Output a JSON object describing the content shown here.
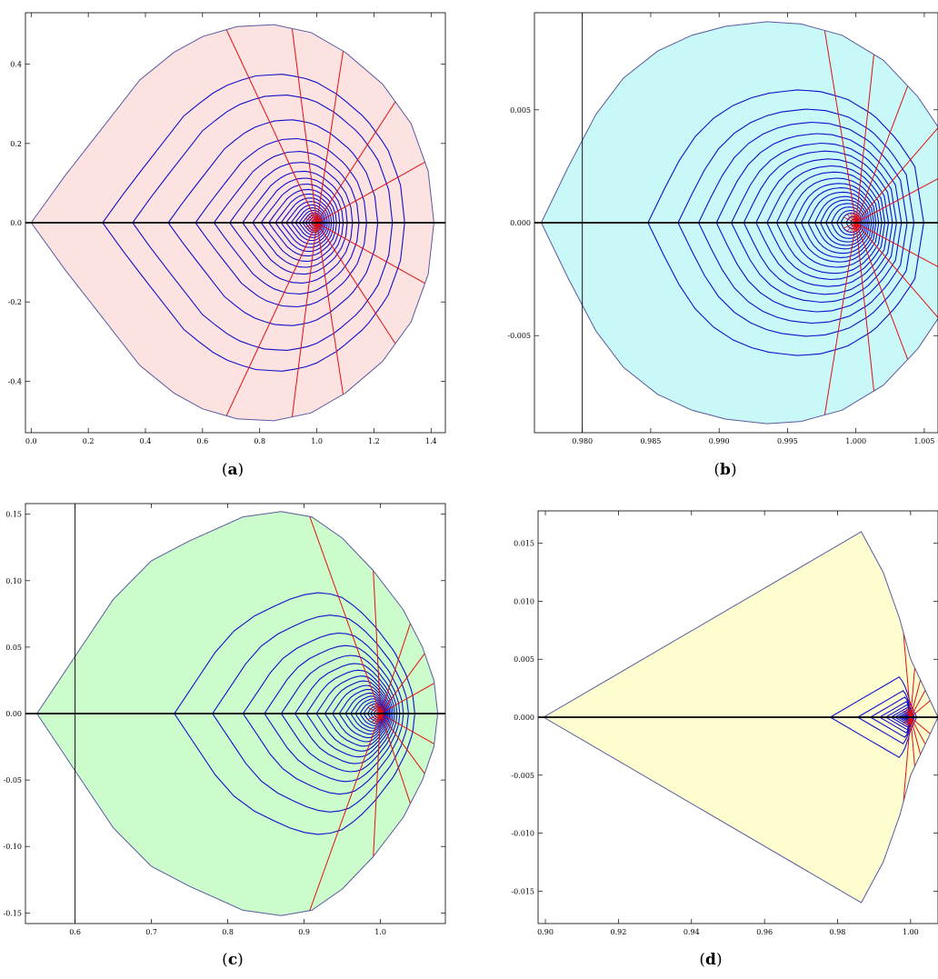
{
  "figure": {
    "captions": [
      {
        "open": "(",
        "letter": "a",
        "close": ")"
      },
      {
        "open": "(",
        "letter": "b",
        "close": ")"
      },
      {
        "open": "(",
        "letter": "c",
        "close": ")"
      },
      {
        "open": "(",
        "letter": "d",
        "close": ")"
      }
    ]
  },
  "chart_data": [
    {
      "type": "line",
      "panel": "a",
      "xlim": [
        -0.02,
        1.45
      ],
      "ylim": [
        -0.53,
        0.53
      ],
      "xticks": [
        0.0,
        0.2,
        0.4,
        0.6,
        0.8,
        1.0,
        1.2,
        1.4
      ],
      "xtick_labels": [
        "0.0",
        "0.2",
        "0.4",
        "0.6",
        "0.8",
        "1.0",
        "1.2",
        "1.4"
      ],
      "yticks": [
        -0.4,
        -0.2,
        0.0,
        0.2,
        0.4
      ],
      "ytick_labels": [
        "-0.4",
        "-0.2",
        "0.0",
        "0.2",
        "0.4"
      ],
      "fill_color": "#fde2e2",
      "boundary_color": "#5a5aa0",
      "level_color": "#1010c8",
      "ray_color": "#e01010",
      "center": [
        1.0,
        0.0
      ],
      "boundary": [
        [
          0.0,
          0.0
        ],
        [
          0.12,
          0.12
        ],
        [
          0.25,
          0.24
        ],
        [
          0.38,
          0.36
        ],
        [
          0.5,
          0.43
        ],
        [
          0.6,
          0.47
        ],
        [
          0.72,
          0.495
        ],
        [
          0.85,
          0.5
        ],
        [
          0.98,
          0.48
        ],
        [
          1.1,
          0.43
        ],
        [
          1.23,
          0.35
        ],
        [
          1.33,
          0.25
        ],
        [
          1.39,
          0.13
        ],
        [
          1.41,
          0.0
        ],
        [
          1.39,
          -0.13
        ],
        [
          1.33,
          -0.25
        ],
        [
          1.23,
          -0.35
        ],
        [
          1.1,
          -0.43
        ],
        [
          0.98,
          -0.48
        ],
        [
          0.85,
          -0.5
        ],
        [
          0.72,
          -0.495
        ],
        [
          0.6,
          -0.47
        ],
        [
          0.5,
          -0.43
        ],
        [
          0.38,
          -0.36
        ],
        [
          0.25,
          -0.24
        ],
        [
          0.12,
          -0.12
        ],
        [
          0.0,
          0.0
        ]
      ],
      "left_point": 0.0,
      "right_extent": 0.41,
      "levels_left": [
        0.25,
        0.355,
        0.48,
        0.575,
        0.64,
        0.695,
        0.74,
        0.775,
        0.805,
        0.832,
        0.855,
        0.875,
        0.893,
        0.91,
        0.925,
        0.938,
        0.95,
        0.96,
        0.97,
        0.98,
        0.988
      ],
      "ray_angles": [
        0,
        22,
        48,
        78,
        100,
        123,
        180,
        237,
        260,
        282,
        312,
        338
      ],
      "vertical_line": null
    },
    {
      "type": "line",
      "panel": "b",
      "xlim": [
        0.9765,
        1.006
      ],
      "ylim": [
        -0.0093,
        0.0093
      ],
      "xticks": [
        0.98,
        0.985,
        0.99,
        0.995,
        1.0,
        1.005
      ],
      "xtick_labels": [
        "0.980",
        "0.985",
        "0.990",
        "0.995",
        "1.000",
        "1.005"
      ],
      "yticks": [
        -0.005,
        0.0,
        0.005
      ],
      "ytick_labels": [
        "-0.005",
        "0.000",
        "0.005"
      ],
      "fill_color": "#c8f8f8",
      "boundary_color": "#5a5aa0",
      "level_color": "#1010c8",
      "ray_color": "#e01010",
      "center": [
        1.0,
        0.0
      ],
      "boundary": [
        [
          0.977,
          0.0
        ],
        [
          0.979,
          0.0025
        ],
        [
          0.981,
          0.0048
        ],
        [
          0.983,
          0.0064
        ],
        [
          0.9855,
          0.0076
        ],
        [
          0.988,
          0.0083
        ],
        [
          0.9905,
          0.0087
        ],
        [
          0.9935,
          0.0089
        ],
        [
          0.996,
          0.0088
        ],
        [
          0.999,
          0.0083
        ],
        [
          1.002,
          0.0072
        ],
        [
          1.0045,
          0.0056
        ],
        [
          1.0065,
          0.0038
        ],
        [
          1.0075,
          0.0
        ],
        [
          1.0065,
          -0.0038
        ],
        [
          1.0045,
          -0.0056
        ],
        [
          1.002,
          -0.0072
        ],
        [
          0.999,
          -0.0083
        ],
        [
          0.996,
          -0.0088
        ],
        [
          0.9935,
          -0.0089
        ],
        [
          0.9905,
          -0.0087
        ],
        [
          0.988,
          -0.0083
        ],
        [
          0.9855,
          -0.0076
        ],
        [
          0.983,
          -0.0064
        ],
        [
          0.981,
          -0.0048
        ],
        [
          0.979,
          -0.0025
        ],
        [
          0.977,
          0.0
        ]
      ],
      "left_point": 0.977,
      "right_extent": 0.0075,
      "levels_left": [
        0.9848,
        0.987,
        0.9885,
        0.9898,
        0.9909,
        0.9918,
        0.9927,
        0.9935,
        0.9942,
        0.9949,
        0.9955,
        0.996,
        0.9965,
        0.997,
        0.9974,
        0.9978,
        0.9982,
        0.9986,
        0.9989,
        0.9993,
        0.9996
      ],
      "ray_angles": [
        0,
        18,
        35,
        58,
        80,
        105,
        180,
        255,
        280,
        302,
        325,
        342
      ],
      "vertical_line": 0.98
    },
    {
      "type": "line",
      "panel": "c",
      "xlim": [
        0.535,
        1.085
      ],
      "ylim": [
        -0.158,
        0.158
      ],
      "xticks": [
        0.6,
        0.7,
        0.8,
        0.9,
        1.0
      ],
      "xtick_labels": [
        "0.6",
        "0.7",
        "0.8",
        "0.9",
        "1.0"
      ],
      "yticks": [
        -0.15,
        -0.1,
        -0.05,
        0.0,
        0.05,
        0.1,
        0.15
      ],
      "ytick_labels": [
        "-0.15",
        "-0.10",
        "-0.05",
        "0.00",
        "0.05",
        "0.10",
        "0.15"
      ],
      "fill_color": "#ccfccc",
      "boundary_color": "#5a5aa0",
      "level_color": "#1010c8",
      "ray_color": "#e01010",
      "center": [
        1.0,
        0.0
      ],
      "boundary": [
        [
          0.55,
          0.0
        ],
        [
          0.6,
          0.043
        ],
        [
          0.65,
          0.086
        ],
        [
          0.7,
          0.115
        ],
        [
          0.75,
          0.13
        ],
        [
          0.82,
          0.148
        ],
        [
          0.87,
          0.152
        ],
        [
          0.91,
          0.148
        ],
        [
          0.95,
          0.132
        ],
        [
          0.99,
          0.108
        ],
        [
          1.03,
          0.078
        ],
        [
          1.055,
          0.05
        ],
        [
          1.07,
          0.025
        ],
        [
          1.075,
          0.0
        ],
        [
          1.07,
          -0.025
        ],
        [
          1.055,
          -0.05
        ],
        [
          1.03,
          -0.078
        ],
        [
          0.99,
          -0.108
        ],
        [
          0.95,
          -0.132
        ],
        [
          0.91,
          -0.148
        ],
        [
          0.87,
          -0.152
        ],
        [
          0.82,
          -0.148
        ],
        [
          0.75,
          -0.13
        ],
        [
          0.7,
          -0.115
        ],
        [
          0.65,
          -0.086
        ],
        [
          0.6,
          -0.043
        ],
        [
          0.55,
          0.0
        ]
      ],
      "left_point": 0.55,
      "right_extent": 0.075,
      "levels_left": [
        0.73,
        0.78,
        0.82,
        0.848,
        0.87,
        0.888,
        0.903,
        0.916,
        0.927,
        0.937,
        0.946,
        0.954,
        0.961,
        0.967,
        0.973,
        0.978,
        0.983,
        0.987,
        0.991,
        0.995
      ],
      "ray_angles": [
        0,
        18,
        38,
        60,
        95,
        122,
        180,
        238,
        265,
        300,
        322,
        342
      ],
      "vertical_line": 0.6
    },
    {
      "type": "line",
      "panel": "d",
      "xlim": [
        0.898,
        1.0075
      ],
      "ylim": [
        -0.0178,
        0.0178
      ],
      "xticks": [
        0.9,
        0.92,
        0.94,
        0.96,
        0.98,
        1.0
      ],
      "xtick_labels": [
        "0.90",
        "0.92",
        "0.94",
        "0.96",
        "0.98",
        "1.00"
      ],
      "yticks": [
        -0.015,
        -0.01,
        -0.005,
        0.0,
        0.005,
        0.01,
        0.015
      ],
      "ytick_labels": [
        "-0.015",
        "-0.010",
        "-0.005",
        "0.000",
        "0.005",
        "0.010",
        "0.015"
      ],
      "fill_color": "#fdfdd0",
      "boundary_color": "#5a5aa0",
      "level_color": "#1010c8",
      "ray_color": "#e01010",
      "center": [
        1.0,
        0.0
      ],
      "boundary": [
        [
          0.8995,
          0.0
        ],
        [
          0.9865,
          0.016
        ],
        [
          0.9925,
          0.0125
        ],
        [
          0.997,
          0.0085
        ],
        [
          1.0,
          0.005
        ],
        [
          1.0075,
          0.0
        ],
        [
          1.0,
          -0.005
        ],
        [
          0.997,
          -0.0085
        ],
        [
          0.9925,
          -0.0125
        ],
        [
          0.9865,
          -0.016
        ],
        [
          0.8995,
          0.0
        ]
      ],
      "left_point": 0.8995,
      "right_extent": 0.0075,
      "levels_left": [
        0.978,
        0.9855,
        0.989,
        0.9915,
        0.9932,
        0.9946,
        0.9957,
        0.9966,
        0.9973,
        0.9979,
        0.9984,
        0.9988,
        0.9991,
        0.9994,
        0.9996
      ],
      "ray_angles": [
        0,
        15,
        30,
        50,
        75,
        105,
        180,
        255,
        285,
        310,
        330,
        345
      ],
      "vertical_line": null
    }
  ]
}
